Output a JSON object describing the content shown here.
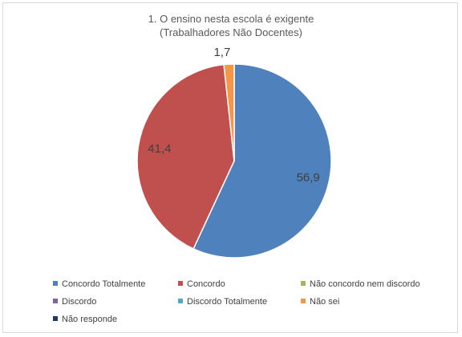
{
  "chart_data": {
    "type": "pie",
    "title": "1. O ensino nesta escola é exigente",
    "subtitle": "(Trabalhadores Não Docentes)",
    "slices": [
      {
        "name": "Concordo Totalmente",
        "value": 56.9,
        "label": "56,9",
        "color": "#4f81bd"
      },
      {
        "name": "Concordo",
        "value": 41.4,
        "label": "41,4",
        "color": "#c0504d"
      },
      {
        "name": "Não concordo nem discordo",
        "value": 0,
        "label": "",
        "color": "#9bbb59"
      },
      {
        "name": "Discordo",
        "value": 0,
        "label": "",
        "color": "#8064a2"
      },
      {
        "name": "Discordo Totalmente",
        "value": 0,
        "label": "",
        "color": "#4bacc6"
      },
      {
        "name": "Não sei",
        "value": 1.7,
        "label": "1,7",
        "color": "#f79646"
      },
      {
        "name": "Não responde",
        "value": 0,
        "label": "",
        "color": "#1f3864"
      }
    ],
    "legend_position": "bottom"
  }
}
